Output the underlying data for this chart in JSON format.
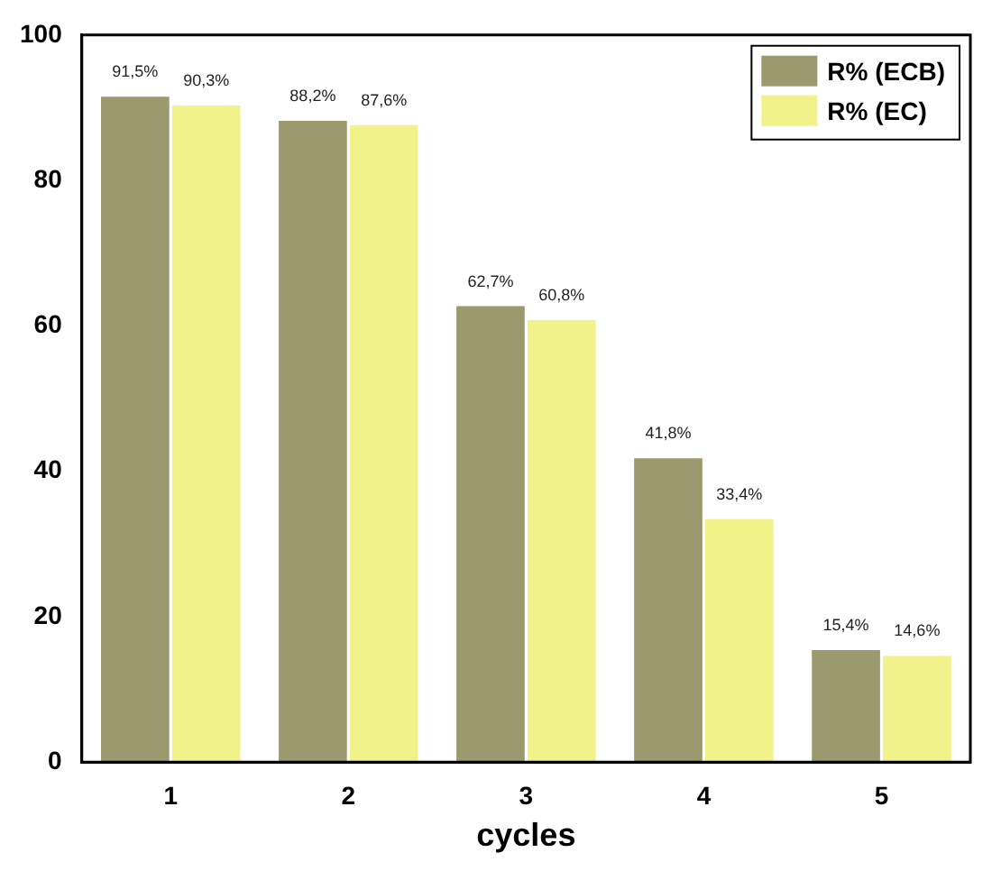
{
  "chart_data": {
    "type": "bar",
    "xlabel": "cycles",
    "categories": [
      "1",
      "2",
      "3",
      "4",
      "5"
    ],
    "series": [
      {
        "name": "R% (ECB)",
        "color": "#9a9a6e",
        "values": [
          91.5,
          88.2,
          62.7,
          41.8,
          15.4
        ],
        "value_labels": [
          "91,5%",
          "88,2%",
          "62,7%",
          "41,8%",
          "15,4%"
        ]
      },
      {
        "name": "R% (EC)",
        "color": "#f2f28a",
        "values": [
          90.3,
          87.6,
          60.8,
          33.4,
          14.6
        ],
        "value_labels": [
          "90,3%",
          "87,6%",
          "60,8%",
          "33,4%",
          "14,6%"
        ]
      }
    ],
    "ylim": [
      0,
      100
    ],
    "yticks": [
      0,
      20,
      40,
      60,
      80,
      100
    ],
    "grid": false,
    "legend": "top right"
  }
}
